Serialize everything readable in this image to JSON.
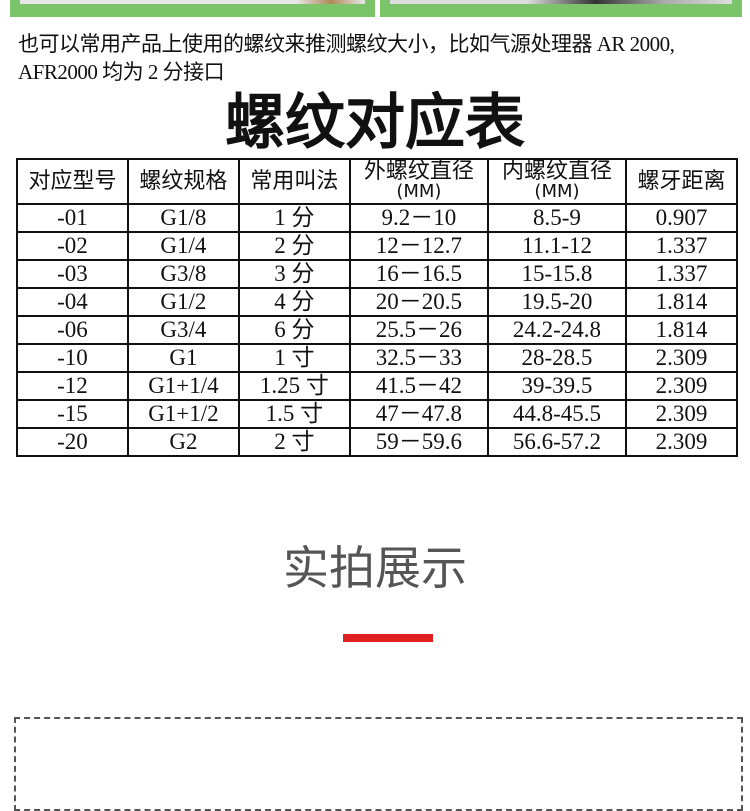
{
  "intro": "也可以常用产品上使用的螺纹来推测螺纹大小，比如气源处理器 AR 2000, AFR2000 均为 2 分接口",
  "title": "螺纹对应表",
  "table": {
    "headers": [
      {
        "label": "对应型号",
        "unit": ""
      },
      {
        "label": "螺纹规格",
        "unit": ""
      },
      {
        "label": "常用叫法",
        "unit": ""
      },
      {
        "label": "外螺纹直径",
        "unit": "(MM)"
      },
      {
        "label": "内螺纹直径",
        "unit": "(MM)"
      },
      {
        "label": "螺牙距离",
        "unit": ""
      }
    ],
    "rows": [
      [
        "-01",
        "G1/8",
        "1 分",
        "9.2－10",
        "8.5-9",
        "0.907"
      ],
      [
        "-02",
        "G1/4",
        "2 分",
        "12－12.7",
        "11.1-12",
        "1.337"
      ],
      [
        "-03",
        "G3/8",
        "3 分",
        "16－16.5",
        "15-15.8",
        "1.337"
      ],
      [
        "-04",
        "G1/2",
        "4 分",
        "20－20.5",
        "19.5-20",
        "1.814"
      ],
      [
        "-06",
        "G3/4",
        "6 分",
        "25.5－26",
        "24.2-24.8",
        "1.814"
      ],
      [
        "-10",
        "G1",
        "1 寸",
        "32.5－33",
        "28-28.5",
        "2.309"
      ],
      [
        "-12",
        "G1+1/4",
        "1.25 寸",
        "41.5－42",
        "39-39.5",
        "2.309"
      ],
      [
        "-15",
        "G1+1/2",
        "1.5 寸",
        "47－47.8",
        "44.8-45.5",
        "2.309"
      ],
      [
        "-20",
        "G2",
        "2 寸",
        "59－59.6",
        "56.6-57.2",
        "2.309"
      ]
    ]
  },
  "section_title": "实拍展示",
  "colors": {
    "accent": "#e02020",
    "photo_frame": "#7cc46a"
  }
}
